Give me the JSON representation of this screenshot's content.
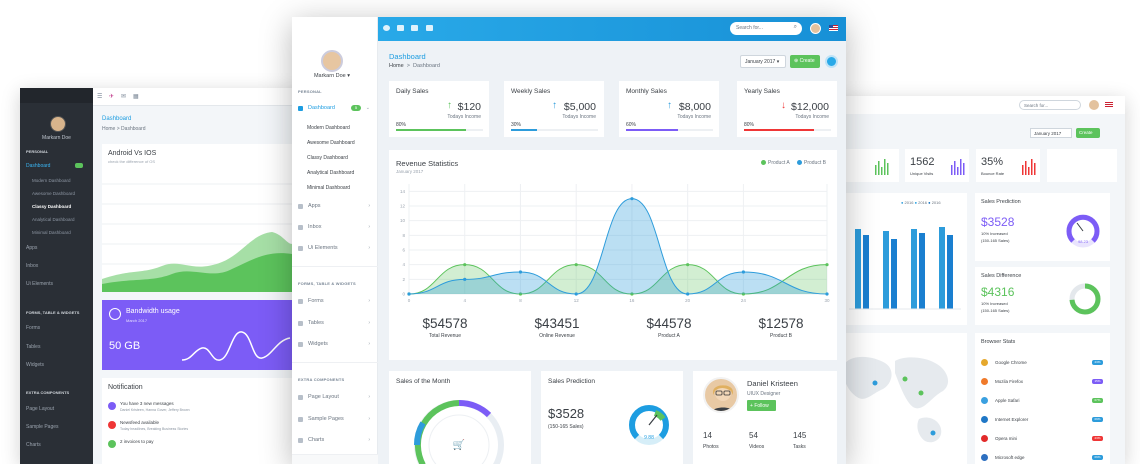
{
  "back_left": {
    "username": "Markarn Doe",
    "sidebar": {
      "section_personal": "PERSONAL",
      "dashboard_label": "Dashboard",
      "badge": "5",
      "sub_items": [
        "Modern Dashboard",
        "Awesome Dashboard",
        "Classy Dashboard",
        "Analytical Dashboard",
        "Minimal Dashboard"
      ],
      "items1": [
        "Apps",
        "Inbox",
        "Ui Elements"
      ],
      "section_forms": "FORMS, TABLE & WIDGETS",
      "items2": [
        "Forms",
        "Tables",
        "Widgets"
      ],
      "section_extra": "EXTRA COMPONENTS",
      "items3": [
        "Page Layout",
        "Sample Pages",
        "Charts"
      ]
    },
    "page_title": "Dashboard",
    "breadcrumb_home": "Home",
    "breadcrumb_current": "Dashboard",
    "card1": {
      "title": "Android Vs IOS",
      "subtitle": "check the difference of OS"
    },
    "card2": {
      "title": "Bandwidth usage",
      "date": "March 2017",
      "value": "50 GB"
    },
    "card3": {
      "title": "Notification",
      "rows": [
        {
          "title": "You have 3 new messages",
          "sub": "Daniel Kristeen, Hanna Gover, Jeffery Brown",
          "color": "#7c5cf6"
        },
        {
          "title": "Newsfeed available",
          "sub": "Today headlines, Breaking Business Stories",
          "color": "#ef3636"
        },
        {
          "title": "2 invoices to pay",
          "sub": "",
          "color": "#5cc35c"
        }
      ]
    }
  },
  "back_right": {
    "search_placeholder": "Search for...",
    "month": "January 2017",
    "create": "Create",
    "stats": [
      {
        "value": "1562",
        "label": "Unique Visits"
      },
      {
        "value": "35%",
        "label": "Bounce Rate"
      }
    ],
    "chart_legend": [
      "2016",
      "2016",
      "2016"
    ],
    "sales_prediction": {
      "title": "Sales Prediction",
      "value": "$3528",
      "line1": "10% Increased",
      "line2": "(150-165 Sales)",
      "gauge": "98.23"
    },
    "sales_difference": {
      "title": "Sales Difference",
      "value": "$4316",
      "line1": "10% Increased",
      "line2": "(150-165 Sales)"
    },
    "browser_stats": {
      "title": "Browser Stats",
      "rows": [
        {
          "name": "Google Chrome",
          "pct": "23%",
          "color": "#2d9cdb"
        },
        {
          "name": "Mozila Firefox",
          "pct": "15%",
          "color": "#7c5cf6"
        },
        {
          "name": "Apple Safari",
          "pct": "07%",
          "color": "#5cc35c"
        },
        {
          "name": "Internet Explorer",
          "pct": "09%",
          "color": "#2d9cdb"
        },
        {
          "name": "Opera mini",
          "pct": "23%",
          "color": "#ef3636"
        },
        {
          "name": "Microsoft edge",
          "pct": "09%",
          "color": "#2d9cdb"
        }
      ]
    }
  },
  "front": {
    "username": "Markarn Doe",
    "sidebar": {
      "section_personal": "PERSONAL",
      "dashboard_label": "Dashboard",
      "badge": "5",
      "sub_items": [
        "Modern Dashboard",
        "Awesome Dashboard",
        "Classy Dashboard",
        "Analytical Dashboard",
        "Minimal Dashboard"
      ],
      "items1": [
        "Apps",
        "Inbox",
        "Ui Elements"
      ],
      "section_forms": "FORMS, TABLE & WIDGETS",
      "items2": [
        "Forms",
        "Tables",
        "Widgets"
      ],
      "section_extra": "EXTRA COMPONENTS",
      "items3": [
        "Page Layout",
        "Sample Pages",
        "Charts"
      ]
    },
    "search_placeholder": "Search for...",
    "page_title": "Dashboard",
    "breadcrumb_home": "Home",
    "breadcrumb_sep": ">",
    "breadcrumb_current": "Dashboard",
    "month": "January 2017",
    "create": "Create",
    "kpis": [
      {
        "title": "Daily Sales",
        "value": "$120",
        "sub": "Todays Income",
        "pct": "80%",
        "fill": 0.8,
        "color": "#5cc35c",
        "trend": "up",
        "arrow_color": "#5cc35c"
      },
      {
        "title": "Weekly Sales",
        "value": "$5,000",
        "sub": "Todays Income",
        "pct": "30%",
        "fill": 0.3,
        "color": "#2d9cdb",
        "trend": "up",
        "arrow_color": "#2d9cdb"
      },
      {
        "title": "Monthly Sales",
        "value": "$8,000",
        "sub": "Todays Income",
        "pct": "60%",
        "fill": 0.6,
        "color": "#7c5cf6",
        "trend": "up",
        "arrow_color": "#7c5cf6"
      },
      {
        "title": "Yearly Sales",
        "value": "$12,000",
        "sub": "Todays Income",
        "pct": "80%",
        "fill": 0.8,
        "color": "#ef3636",
        "trend": "down",
        "arrow_color": "#ef3636"
      }
    ],
    "revenue": {
      "title": "Revenue Statistics",
      "date": "January 2017",
      "legend_a": "Product A",
      "legend_b": "Product B",
      "totals": [
        {
          "value": "$54578",
          "label": "Total Revenue"
        },
        {
          "value": "$43451",
          "label": "Online Revenue"
        },
        {
          "value": "$44578",
          "label": "Product A"
        },
        {
          "value": "$12578",
          "label": "Product B"
        }
      ]
    },
    "sales_of_month": {
      "title": "Sales of the Month"
    },
    "sales_prediction": {
      "title": "Sales Prediction",
      "value": "$3528",
      "sub": "(150-165 Sales)",
      "gauge": "9.88"
    },
    "profile": {
      "name": "Daniel Kristeen",
      "role": "UIUX Designer",
      "follow": "Follow",
      "stats": [
        {
          "value": "14",
          "label": "Photos"
        },
        {
          "value": "54",
          "label": "Videos"
        },
        {
          "value": "145",
          "label": "Tasks"
        }
      ]
    }
  },
  "chart_data": {
    "type": "area",
    "title": "Revenue Statistics",
    "x": [
      0,
      4,
      8,
      12,
      16,
      20,
      24,
      30
    ],
    "yticks": [
      0,
      2,
      4,
      6,
      8,
      10,
      12,
      14
    ],
    "ylim": [
      0,
      15
    ],
    "series": [
      {
        "name": "Product A",
        "color": "#5cc35c",
        "values": [
          0,
          4,
          0,
          4,
          0,
          4,
          0,
          4
        ]
      },
      {
        "name": "Product B",
        "color": "#2d9cdb",
        "values": [
          0,
          2,
          3,
          0,
          13,
          0,
          3,
          0
        ]
      }
    ],
    "legend_position": "top-right",
    "grid": true
  }
}
